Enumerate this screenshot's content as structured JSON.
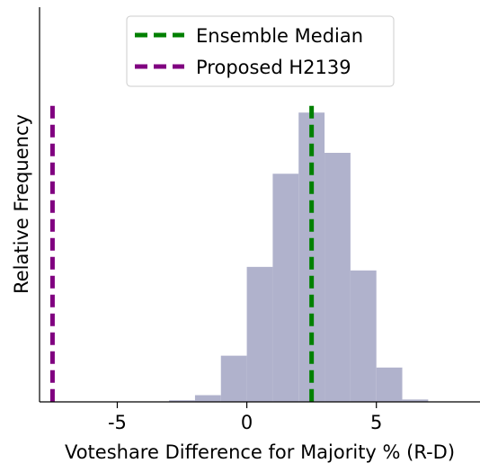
{
  "chart_data": {
    "type": "bar",
    "title": "",
    "xlabel": "Voteshare Difference for Majority % (R-D)",
    "ylabel": "Relative Frequency",
    "xlim": [
      -8.0,
      9.0
    ],
    "ylim": [
      0,
      1.0
    ],
    "xticks": [
      -5,
      0,
      5
    ],
    "xtick_labels": [
      "-5",
      "0",
      "5"
    ],
    "yticks_shown": false,
    "grid": false,
    "bar_color": "#b0b2cc",
    "bin_width": 1,
    "bins": [
      {
        "x0": -3,
        "x1": -2,
        "value": 0.004
      },
      {
        "x0": -2,
        "x1": -1,
        "value": 0.017
      },
      {
        "x0": -1,
        "x1": 0,
        "value": 0.117
      },
      {
        "x0": 0,
        "x1": 1,
        "value": 0.342
      },
      {
        "x0": 1,
        "x1": 2,
        "value": 0.578
      },
      {
        "x0": 2,
        "x1": 3,
        "value": 0.733
      },
      {
        "x0": 3,
        "x1": 4,
        "value": 0.631
      },
      {
        "x0": 4,
        "x1": 5,
        "value": 0.333
      },
      {
        "x0": 5,
        "x1": 6,
        "value": 0.087
      },
      {
        "x0": 6,
        "x1": 7,
        "value": 0.006
      }
    ],
    "vlines": [
      {
        "name": "Ensemble Median",
        "x": 2.5,
        "color": "#008000",
        "style": "dashed"
      },
      {
        "name": "Proposed H2139",
        "x": -7.5,
        "color": "#800080",
        "style": "dashed"
      }
    ],
    "legend": {
      "position": "top-center",
      "entries": [
        "Ensemble Median",
        "Proposed H2139"
      ]
    }
  }
}
